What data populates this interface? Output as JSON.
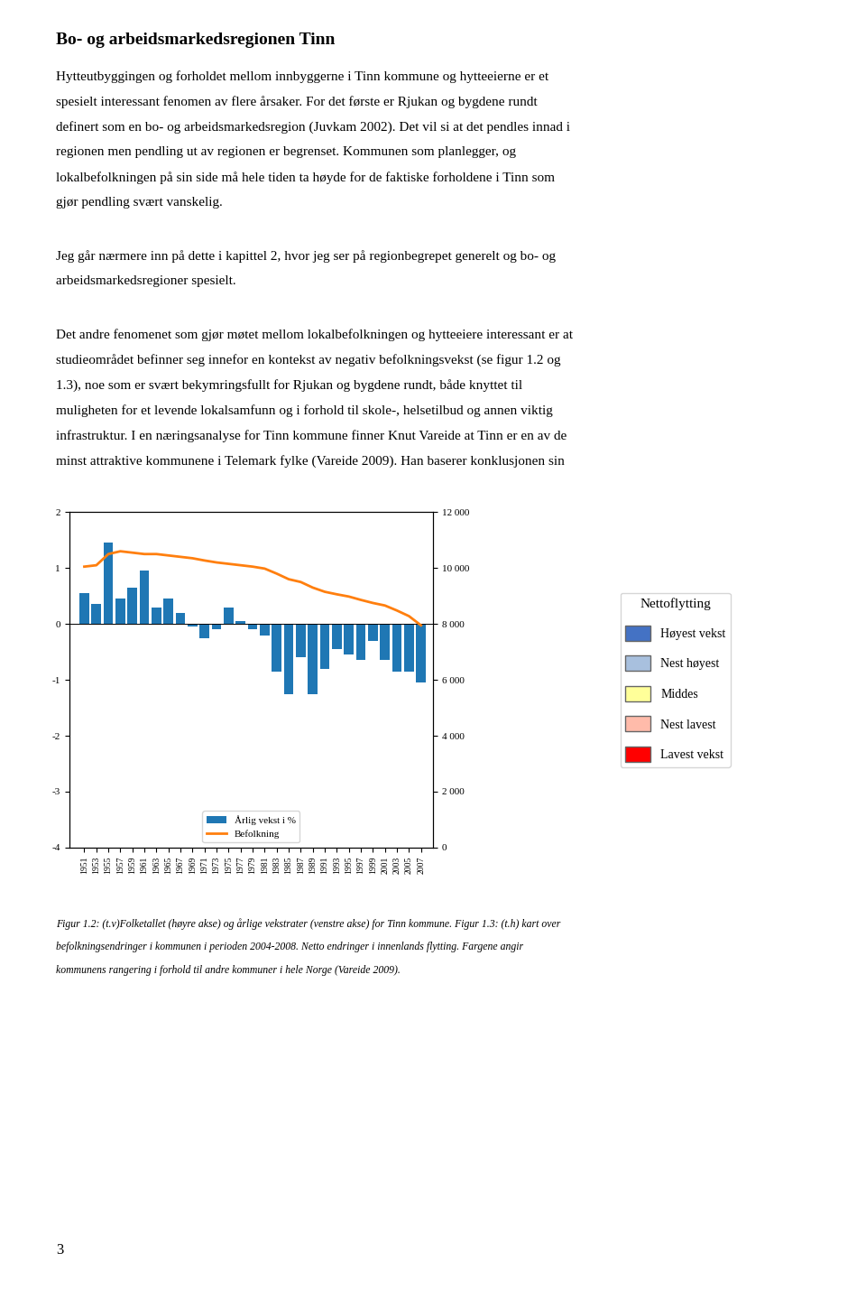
{
  "chart_data": {
    "type": "bar",
    "title": "Bo- og arbeidsmarkedsregionen Tinn",
    "paragraphs": [
      [
        "Hytteutbyggingen og forholdet mellom innbyggerne i Tinn kommune og hytteeierne er et",
        "spesielt interessant fenomen av flere årsaker. For det første er Rjukan og bygdene rundt",
        "definert som en bo- og arbeidsmarkedsregion (Juvkam 2002). Det vil si at det pendles innad i",
        "regionen men pendling ut av regionen er begrenset. Kommunen som planlegger, og",
        "lokalbefolkningen på sin side må hele tiden ta høyde for de faktiske forholdene i Tinn som",
        "gjør pendling svært vanskelig."
      ],
      [
        "Jeg går nærmere inn på dette i kapittel 2, hvor jeg ser på regionbegrepet generelt og bo- og",
        "arbeidsmarkedsregioner spesielt."
      ],
      [
        "Det andre fenomenet som gjør møtet mellom lokalbefolkningen og hytteeiere interessant er at",
        "studieområdet befinner seg innefor en kontekst av negativ befolkningsvekst (se figur 1.2 og",
        "1.3), noe som er svært bekymringsfullt for Rjukan og bygdene rundt, både knyttet til",
        "muligheten for et levende lokalsamfunn og i forhold til skole-, helsetilbud og annen viktig",
        "infrastruktur. I en næringsanalyse for Tinn kommune finner Knut Vareide at Tinn er en av de",
        "minst attraktive kommunene i Telemark fylke (Vareide 2009). Han baserer konklusjonen sin"
      ]
    ],
    "caption": [
      "Figur 1.2: (t.v)Folketallet (høyre akse) og årlige vekstrater (venstre akse) for Tinn kommune. Figur 1.3: (t.h) kart over",
      "befolkningsendringer i kommunen i perioden 2004-2008. Netto endringer i innenlands flytting. Fargene angir",
      "kommunens rangering i forhold til andre kommuner i hele Norge (Vareide 2009)."
    ],
    "page_number": "3",
    "map_key": {
      "title": "Nettoflytting",
      "labels": [
        "Høyest vekst",
        "Nest høyest",
        "Middes",
        "Nest lavest",
        "Lavest vekst"
      ],
      "colors": [
        "#4472C4",
        "#A8C0DE",
        "#FFFF99",
        "#FFBBAA",
        "#FF0000"
      ]
    },
    "x": [
      1951,
      1953,
      1955,
      1957,
      1959,
      1961,
      1963,
      1965,
      1967,
      1969,
      1971,
      1973,
      1975,
      1977,
      1979,
      1981,
      1983,
      1985,
      1987,
      1989,
      1991,
      1993,
      1995,
      1997,
      1999,
      2001,
      2003,
      2005,
      2007
    ],
    "xlim": [
      1948.5,
      2009
    ],
    "xticks": [
      1951,
      1953,
      1955,
      1957,
      1959,
      1961,
      1963,
      1965,
      1967,
      1969,
      1971,
      1973,
      1975,
      1977,
      1979,
      1981,
      1983,
      1985,
      1987,
      1989,
      1991,
      1993,
      1995,
      1997,
      1999,
      2001,
      2003,
      2005,
      2007
    ],
    "series": [
      {
        "name": "Årlig vekst i %",
        "type": "bar",
        "values": [
          0.55,
          0.35,
          1.45,
          0.45,
          0.65,
          0.95,
          0.3,
          0.45,
          0.2,
          -0.05,
          -0.25,
          -0.1,
          0.3,
          0.05,
          -0.1,
          -0.2,
          -0.85,
          -1.25,
          -0.6,
          -1.25,
          -0.8,
          -0.45,
          -0.55,
          -0.65,
          -0.3,
          -0.65,
          -0.85,
          -0.85,
          -1.05
        ]
      },
      {
        "name": "Befolkning",
        "type": "line",
        "axis": "y2",
        "values": [
          10050,
          10100,
          10500,
          10600,
          10550,
          10500,
          10500,
          10450,
          10400,
          10350,
          10270,
          10200,
          10150,
          10100,
          10050,
          9980,
          9800,
          9600,
          9500,
          9300,
          9150,
          9060,
          8980,
          8860,
          8750,
          8660,
          8480,
          8280,
          7950
        ]
      }
    ],
    "ylim": [
      -4,
      2
    ],
    "yticks": [
      -4,
      -3,
      -2,
      -1,
      0,
      1,
      2
    ],
    "y2lim": [
      0,
      12000
    ],
    "y2ticks": [
      0,
      {
        "value": 2000,
        "label": "2 000"
      },
      {
        "value": 4000,
        "label": "4 000"
      },
      {
        "value": 6000,
        "label": "6 000"
      },
      {
        "value": 8000,
        "label": "8 000"
      },
      {
        "value": 10000,
        "label": "10 000"
      },
      {
        "value": 12000,
        "label": "12 000"
      }
    ],
    "legend": "lower center"
  }
}
